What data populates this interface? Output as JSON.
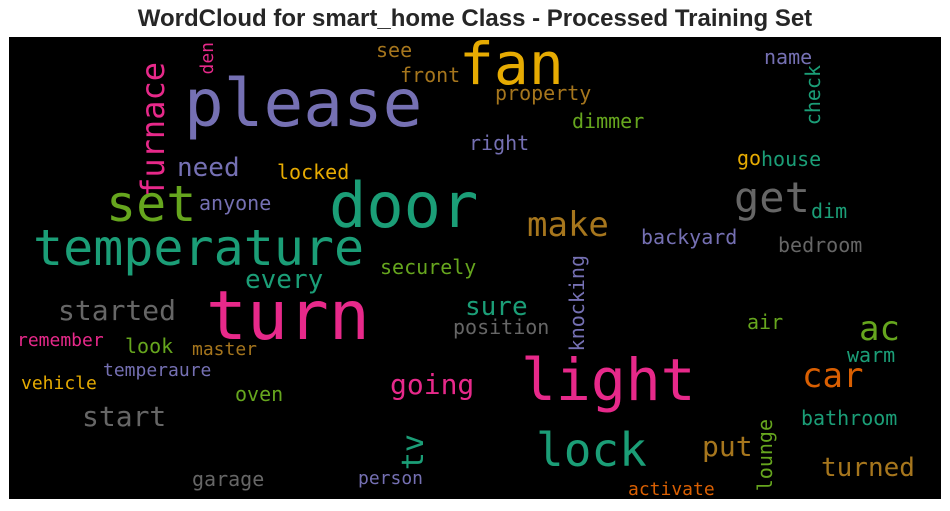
{
  "title": "WordCloud for smart_home Class - Processed Training Set",
  "colors": {
    "purple": "#7570b3",
    "green": "#1b9e77",
    "orange": "#d95f02",
    "pink": "#e7298a",
    "lime": "#66a61e",
    "gold": "#e6ab02",
    "brown": "#a6761d",
    "gray": "#666666"
  },
  "words": {
    "please": "please",
    "fan": "fan",
    "door": "door",
    "turn": "turn",
    "light": "light",
    "temperature": "temperature",
    "set": "set",
    "get": "get",
    "lock": "lock",
    "make": "make",
    "ac": "ac",
    "car": "car",
    "furnace": "furnace",
    "going": "going",
    "tv": "tv",
    "need": "need",
    "started": "started",
    "start": "start",
    "every": "every",
    "sure": "sure",
    "put": "put",
    "turned": "turned",
    "knocking": "knocking",
    "den": "den",
    "see": "see",
    "front": "front",
    "property": "property",
    "dimmer": "dimmer",
    "right": "right",
    "name": "name",
    "check": "check",
    "house": "house",
    "go": "go",
    "locked": "locked",
    "anyone": "anyone",
    "dim": "dim",
    "backyard": "backyard",
    "bedroom": "bedroom",
    "securely": "securely",
    "position": "position",
    "air": "air",
    "remember": "remember",
    "look": "look",
    "master": "master",
    "warm": "warm",
    "vehicle": "vehicle",
    "temperaure": "temperaure",
    "oven": "oven",
    "bathroom": "bathroom",
    "lounge": "lounge",
    "garage": "garage",
    "person": "person",
    "activate": "activate"
  }
}
